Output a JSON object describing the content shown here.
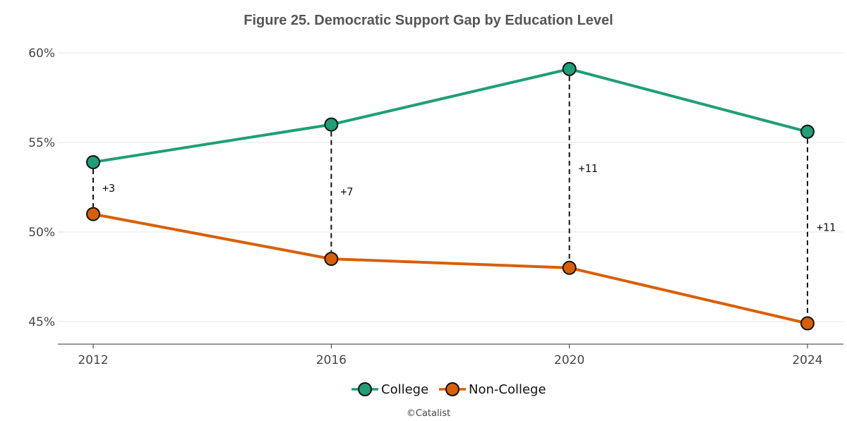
{
  "chart_data": {
    "type": "line",
    "title": "Figure 25. Democratic Support Gap by Education Level",
    "xlabel": "",
    "ylabel": "",
    "categories": [
      "2012",
      "2016",
      "2020",
      "2024"
    ],
    "ylim": [
      43.5,
      60.5
    ],
    "y_ticks": [
      45,
      50,
      55,
      60
    ],
    "y_tick_labels": [
      "45%",
      "50%",
      "55%",
      "60%"
    ],
    "grid": true,
    "series": [
      {
        "name": "College",
        "color": "#1f9e77",
        "values": [
          53.9,
          56.0,
          59.1,
          55.6
        ]
      },
      {
        "name": "Non-College",
        "color": "#d95f02",
        "values": [
          51.0,
          48.5,
          48.0,
          44.9
        ]
      }
    ],
    "gap_labels": [
      "+3",
      "+7",
      "+11",
      "+11"
    ],
    "legend_position": "bottom-center",
    "credit": "©Catalist"
  }
}
